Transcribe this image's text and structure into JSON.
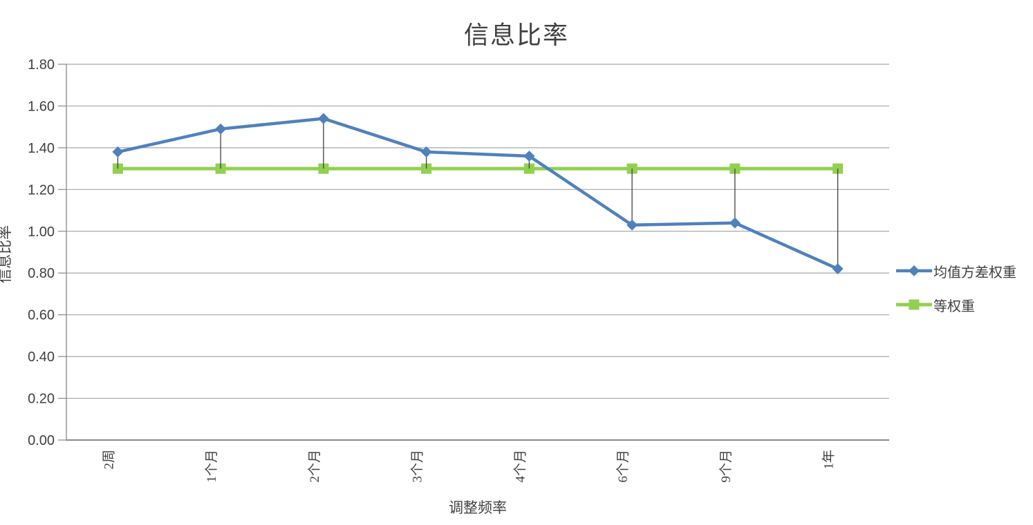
{
  "chart_data": {
    "type": "line",
    "title": "信息比率",
    "xlabel": "调整频率",
    "ylabel": "信息比率",
    "categories": [
      "2周",
      "1个月",
      "2个月",
      "3个月",
      "4个月",
      "6个月",
      "9个月",
      "1年"
    ],
    "series": [
      {
        "name": "均值方差权重",
        "color": "#4F81BD",
        "marker": "diamond",
        "values": [
          1.38,
          1.49,
          1.54,
          1.38,
          1.36,
          1.03,
          1.04,
          0.82
        ]
      },
      {
        "name": "等权重",
        "color": "#92D050",
        "marker": "square",
        "values": [
          1.3,
          1.3,
          1.3,
          1.3,
          1.3,
          1.3,
          1.3,
          1.3
        ]
      }
    ],
    "ylim": [
      0,
      1.8
    ],
    "y_tick_step": 0.2,
    "y_tick_labels": [
      "0.00",
      "0.20",
      "0.40",
      "0.60",
      "0.80",
      "1.00",
      "1.20",
      "1.40",
      "1.60",
      "1.80"
    ],
    "grid": true,
    "high_low_lines": true,
    "legend_position": "right"
  },
  "styles": {
    "grid_color": "#A6A6A6",
    "axis_color": "#898989",
    "text_color": "#404040",
    "high_low_color": "#404040",
    "background": "#FFFFFF"
  }
}
